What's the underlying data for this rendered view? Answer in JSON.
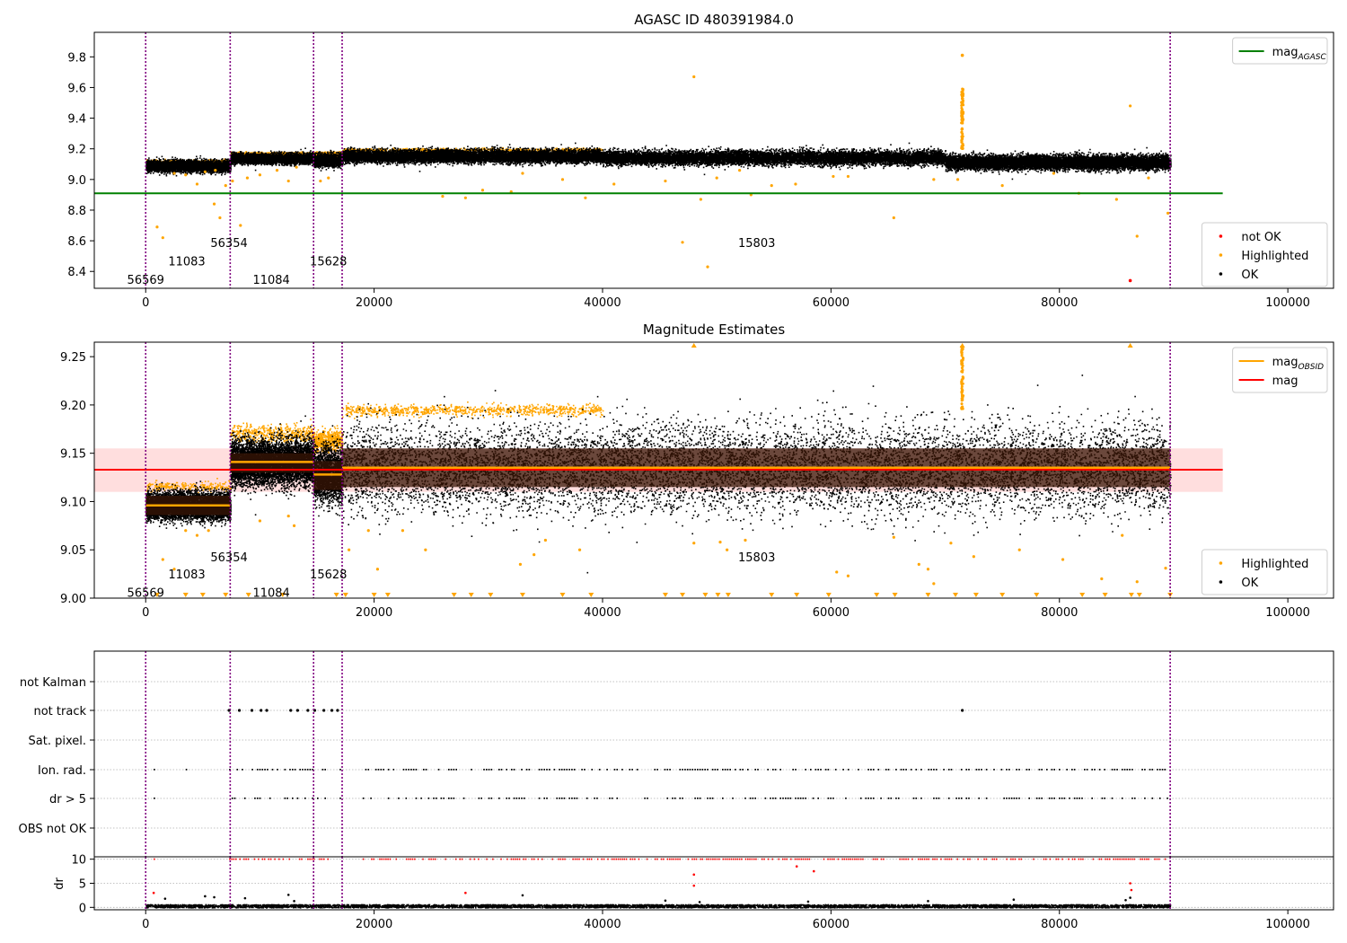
{
  "colors": {
    "ok": "#000000",
    "highlighted": "#ffa500",
    "not_ok": "#ff0000",
    "agasc_line": "#008000",
    "mag_line": "#ff0000",
    "obsid_line": "#ffa500",
    "obsid_band": "#3a1505",
    "mag_band": "#ffc8c8",
    "vline": "#800080",
    "grid": "#b0b0b0"
  },
  "chart_data": [
    {
      "type": "scatter",
      "title": "AGASC ID 480391984.0",
      "xlim": [
        -4500,
        104000
      ],
      "ylim": [
        8.29,
        9.96
      ],
      "x_ticks": [
        0,
        20000,
        40000,
        60000,
        80000,
        100000
      ],
      "x_tick_labels": [
        "0",
        "20000",
        "40000",
        "60000",
        "80000",
        "100000"
      ],
      "y_ticks": [
        8.4,
        8.6,
        8.8,
        9.0,
        9.2,
        9.4,
        9.6,
        9.8
      ],
      "y_tick_labels": [
        "8.4",
        "8.6",
        "8.8",
        "9.0",
        "9.2",
        "9.4",
        "9.6",
        "9.8"
      ],
      "obs_boundaries": [
        0,
        7400,
        14700,
        17200,
        89700
      ],
      "obs_labels": [
        {
          "text": "56569",
          "x": 0,
          "y": 8.35
        },
        {
          "text": "11083",
          "x": 3600,
          "y": 8.47
        },
        {
          "text": "56354",
          "x": 7300,
          "y": 8.59
        },
        {
          "text": "11084",
          "x": 11000,
          "y": 8.35
        },
        {
          "text": "15628",
          "x": 16000,
          "y": 8.47
        },
        {
          "text": "15803",
          "x": 53500,
          "y": 8.59
        }
      ],
      "mag_agasc": 8.91,
      "mag_agasc_x_range": [
        -4500,
        94300
      ],
      "ok_segments": [
        {
          "x": [
            0,
            7400
          ],
          "center": 9.09,
          "spread": 0.04
        },
        {
          "x": [
            7400,
            14700
          ],
          "center": 9.14,
          "spread": 0.035
        },
        {
          "x": [
            14700,
            17200
          ],
          "center": 9.13,
          "spread": 0.045
        },
        {
          "x": [
            17200,
            40000
          ],
          "center": 9.155,
          "spread": 0.045
        },
        {
          "x": [
            40000,
            70000
          ],
          "center": 9.145,
          "spread": 0.05
        },
        {
          "x": [
            70000,
            89700
          ],
          "center": 9.115,
          "spread": 0.05
        }
      ],
      "highlighted_points": [
        [
          1000,
          8.69
        ],
        [
          1500,
          8.62
        ],
        [
          2500,
          9.04
        ],
        [
          3500,
          9.03
        ],
        [
          4500,
          8.97
        ],
        [
          5200,
          9.05
        ],
        [
          6000,
          8.84
        ],
        [
          6100,
          9.06
        ],
        [
          6500,
          8.75
        ],
        [
          7000,
          8.96
        ],
        [
          7600,
          8.99
        ],
        [
          8300,
          8.7
        ],
        [
          8900,
          9.01
        ],
        [
          10000,
          9.03
        ],
        [
          11500,
          9.06
        ],
        [
          12500,
          8.99
        ],
        [
          13200,
          9.08
        ],
        [
          15300,
          8.99
        ],
        [
          16000,
          9.01
        ],
        [
          26000,
          8.89
        ],
        [
          28000,
          8.88
        ],
        [
          29500,
          8.93
        ],
        [
          32000,
          8.92
        ],
        [
          33000,
          9.04
        ],
        [
          36500,
          9.0
        ],
        [
          38500,
          8.88
        ],
        [
          41000,
          8.97
        ],
        [
          45500,
          8.99
        ],
        [
          47000,
          8.59
        ],
        [
          48000,
          9.67
        ],
        [
          48600,
          8.87
        ],
        [
          49200,
          8.43
        ],
        [
          50000,
          9.01
        ],
        [
          52000,
          9.06
        ],
        [
          53000,
          8.9
        ],
        [
          54800,
          8.96
        ],
        [
          56900,
          8.97
        ],
        [
          60200,
          9.02
        ],
        [
          61500,
          9.02
        ],
        [
          65500,
          8.75
        ],
        [
          69000,
          9.0
        ],
        [
          71100,
          9.0
        ],
        [
          75000,
          8.96
        ],
        [
          79500,
          9.04
        ],
        [
          81700,
          8.91
        ],
        [
          85000,
          8.87
        ],
        [
          86200,
          9.48
        ],
        [
          86800,
          8.63
        ],
        [
          87800,
          9.01
        ],
        [
          89500,
          8.78
        ]
      ],
      "highlighted_spike": {
        "x": 71500,
        "y_min": 9.2,
        "y_max": 9.6,
        "top": 9.81
      },
      "not_ok_points": [
        [
          86200,
          8.34
        ]
      ],
      "legend_top": [
        {
          "label": "mag",
          "subscript": "AGASC",
          "color": "#008000"
        }
      ],
      "legend_bottom": [
        {
          "label": "not OK",
          "color": "#ff0000"
        },
        {
          "label": "Highlighted",
          "color": "#ffa500"
        },
        {
          "label": "OK",
          "color": "#000000"
        }
      ]
    },
    {
      "type": "scatter",
      "title": "Magnitude Estimates",
      "xlim": [
        -4500,
        104000
      ],
      "ylim": [
        9.0,
        9.265
      ],
      "x_ticks": [
        0,
        20000,
        40000,
        60000,
        80000,
        100000
      ],
      "x_tick_labels": [
        "0",
        "20000",
        "40000",
        "60000",
        "80000",
        "100000"
      ],
      "y_ticks": [
        9.0,
        9.05,
        9.1,
        9.15,
        9.2,
        9.25
      ],
      "y_tick_labels": [
        "9.00",
        "9.05",
        "9.10",
        "9.15",
        "9.20",
        "9.25"
      ],
      "obs_boundaries": [
        0,
        7400,
        14700,
        17200,
        89700
      ],
      "obs_labels": [
        {
          "text": "56569",
          "x": 0,
          "y": 9.006
        },
        {
          "text": "11083",
          "x": 3600,
          "y": 9.025
        },
        {
          "text": "56354",
          "x": 7300,
          "y": 9.043
        },
        {
          "text": "11084",
          "x": 11000,
          "y": 9.006
        },
        {
          "text": "15628",
          "x": 16000,
          "y": 9.025
        },
        {
          "text": "15803",
          "x": 53500,
          "y": 9.043
        }
      ],
      "mag": 9.133,
      "mag_band": [
        9.11,
        9.155
      ],
      "mag_x_range": [
        -4500,
        94300
      ],
      "obsid_segments": [
        {
          "x": [
            0,
            7400
          ],
          "mag": 9.096,
          "band": [
            9.086,
            9.106
          ],
          "spread": 0.015
        },
        {
          "x": [
            7400,
            14700
          ],
          "mag": 9.141,
          "band": [
            9.13,
            9.15
          ],
          "spread": 0.025
        },
        {
          "x": [
            14700,
            17200
          ],
          "mag": 9.128,
          "band": [
            9.112,
            9.142
          ],
          "spread": 0.03
        },
        {
          "x": [
            17200,
            89700
          ],
          "mag": 9.135,
          "band": [
            9.115,
            9.155
          ],
          "spread": 0.05
        }
      ],
      "highlighted_points": [
        [
          1500,
          9.04
        ],
        [
          2500,
          9.03
        ],
        [
          3500,
          9.07
        ],
        [
          4500,
          9.065
        ],
        [
          5500,
          9.07
        ],
        [
          10000,
          9.08
        ],
        [
          12500,
          9.085
        ],
        [
          13000,
          9.075
        ],
        [
          17800,
          9.05
        ],
        [
          19500,
          9.07
        ],
        [
          20300,
          9.03
        ],
        [
          22500,
          9.07
        ],
        [
          24500,
          9.05
        ],
        [
          32800,
          9.035
        ],
        [
          34000,
          9.045
        ],
        [
          35000,
          9.06
        ],
        [
          38000,
          9.05
        ],
        [
          48000,
          9.057
        ],
        [
          50300,
          9.058
        ],
        [
          50900,
          9.05
        ],
        [
          52500,
          9.06
        ],
        [
          60500,
          9.027
        ],
        [
          61500,
          9.023
        ],
        [
          65500,
          9.063
        ],
        [
          67700,
          9.035
        ],
        [
          68500,
          9.03
        ],
        [
          69000,
          9.015
        ],
        [
          70500,
          9.057
        ],
        [
          72500,
          9.043
        ],
        [
          76500,
          9.05
        ],
        [
          80300,
          9.04
        ],
        [
          83700,
          9.02
        ],
        [
          85500,
          9.065
        ],
        [
          86800,
          9.017
        ],
        [
          89300,
          9.031
        ]
      ],
      "highlighted_triangles_low": [
        1000,
        3500,
        5000,
        7000,
        9000,
        12000,
        16700,
        17500,
        20000,
        21200,
        27000,
        28500,
        30200,
        33000,
        36500,
        39000,
        45500,
        47000,
        49000,
        50100,
        51000,
        54800,
        57000,
        59800,
        64000,
        65600,
        68500,
        70900,
        72700,
        75000,
        78000,
        82000,
        84000,
        86300,
        87000,
        89700
      ],
      "highlighted_triangles_high": [
        48000,
        71500,
        86200
      ],
      "highlighted_spike": {
        "x": 71500,
        "y_min": 9.195,
        "y_max": 9.262
      },
      "legend_top": [
        {
          "label": "mag",
          "subscript": "OBSID",
          "color": "#ffa500"
        },
        {
          "label": "mag",
          "subscript": "",
          "color": "#ff0000"
        }
      ],
      "legend_bottom": [
        {
          "label": "Highlighted",
          "color": "#ffa500"
        },
        {
          "label": "OK",
          "color": "#000000"
        }
      ]
    },
    {
      "type": "scatter",
      "title": "",
      "xlim": [
        -4500,
        104000
      ],
      "categories": [
        "not Kalman",
        "not track",
        "Sat. pixel.",
        "Ion. rad.",
        "dr > 5",
        "OBS not OK"
      ],
      "obs_boundaries": [
        0,
        7400,
        14700,
        17200,
        89700
      ],
      "flag_rows": {
        "not Kalman": [],
        "not track": [
          7300,
          8200,
          9300,
          10100,
          10600,
          12700,
          13300,
          14200,
          14800,
          15600,
          16300,
          16800,
          71500
        ],
        "Sat. pixel.": [],
        "Ion. rad.": {
          "ranges": [
            [
              700,
              1000
            ],
            [
              3500,
              3600
            ],
            [
              5000,
              5100
            ],
            [
              6200,
              6300
            ],
            [
              7300,
              14700
            ],
            [
              15000,
              17200
            ],
            [
              19000,
              89700
            ]
          ],
          "density": 0.5
        },
        "dr > 5": {
          "ranges": [
            [
              700,
              1000
            ],
            [
              3500,
              3600
            ],
            [
              5000,
              5100
            ],
            [
              6200,
              6300
            ],
            [
              7300,
              14700
            ],
            [
              15000,
              17200
            ],
            [
              19000,
              89700
            ]
          ],
          "density": 0.45
        },
        "OBS not OK": []
      }
    },
    {
      "type": "scatter",
      "title": "",
      "xlim": [
        -4500,
        104000
      ],
      "ylim": [
        -0.5,
        10.5
      ],
      "ylabel": "dr",
      "y_ticks": [
        0,
        5,
        10
      ],
      "y_tick_labels": [
        "0",
        "5",
        "10"
      ],
      "x_ticks": [
        0,
        20000,
        40000,
        60000,
        80000,
        100000
      ],
      "x_tick_labels": [
        "0",
        "20000",
        "40000",
        "60000",
        "80000",
        "100000"
      ],
      "obs_boundaries": [
        0,
        7400,
        14700,
        17200,
        89700
      ],
      "ok_range": {
        "x": [
          0,
          89700
        ],
        "y": [
          0.05,
          0.7
        ]
      },
      "ok_outliers": [
        [
          1700,
          1.8
        ],
        [
          5200,
          2.3
        ],
        [
          6000,
          2.1
        ],
        [
          8700,
          1.9
        ],
        [
          12500,
          2.6
        ],
        [
          13000,
          1.3
        ],
        [
          33000,
          2.5
        ],
        [
          45500,
          1.4
        ],
        [
          48500,
          1.1
        ],
        [
          58000,
          1.2
        ],
        [
          68500,
          1.3
        ],
        [
          76000,
          1.6
        ],
        [
          85800,
          1.5
        ],
        [
          86200,
          2.0
        ]
      ],
      "not_ok_ranges": [
        [
          700,
          1000
        ],
        [
          3500,
          3600
        ],
        [
          5000,
          5100
        ],
        [
          6200,
          6300
        ],
        [
          7300,
          14700
        ],
        [
          15000,
          17200
        ],
        [
          19000,
          89700
        ]
      ],
      "not_ok_outliers": [
        [
          700,
          3.0
        ],
        [
          28000,
          3.0
        ],
        [
          48000,
          6.8
        ],
        [
          48000,
          4.5
        ],
        [
          57000,
          8.5
        ],
        [
          58500,
          7.5
        ],
        [
          86200,
          5.0
        ],
        [
          86300,
          3.6
        ]
      ]
    }
  ]
}
